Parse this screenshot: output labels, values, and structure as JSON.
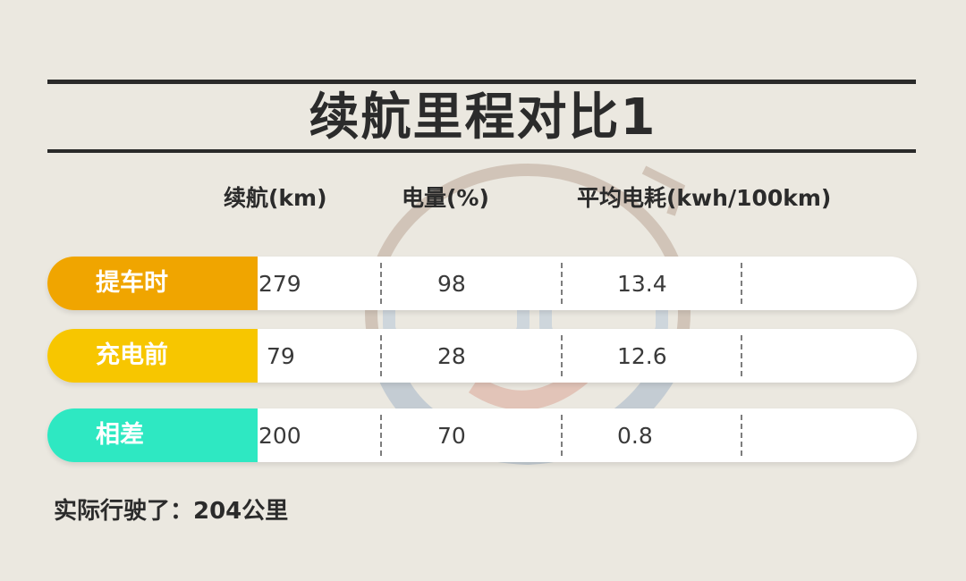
{
  "title": "续航里程对比1",
  "columns": [
    "续航(km)",
    "电量(%)",
    "平均电耗(kwh/100km)"
  ],
  "rows": [
    {
      "label": "提车时",
      "color": "#f0a500",
      "range_km": "279",
      "battery_pct": "98",
      "consumption": "13.4"
    },
    {
      "label": "充电前",
      "color": "#f7c600",
      "range_km": "79",
      "battery_pct": "28",
      "consumption": "12.6"
    },
    {
      "label": "相差",
      "color": "#2ee8c2",
      "range_km": "200",
      "battery_pct": "70",
      "consumption": "0.8"
    }
  ],
  "footer": "实际行驶了：204公里"
}
